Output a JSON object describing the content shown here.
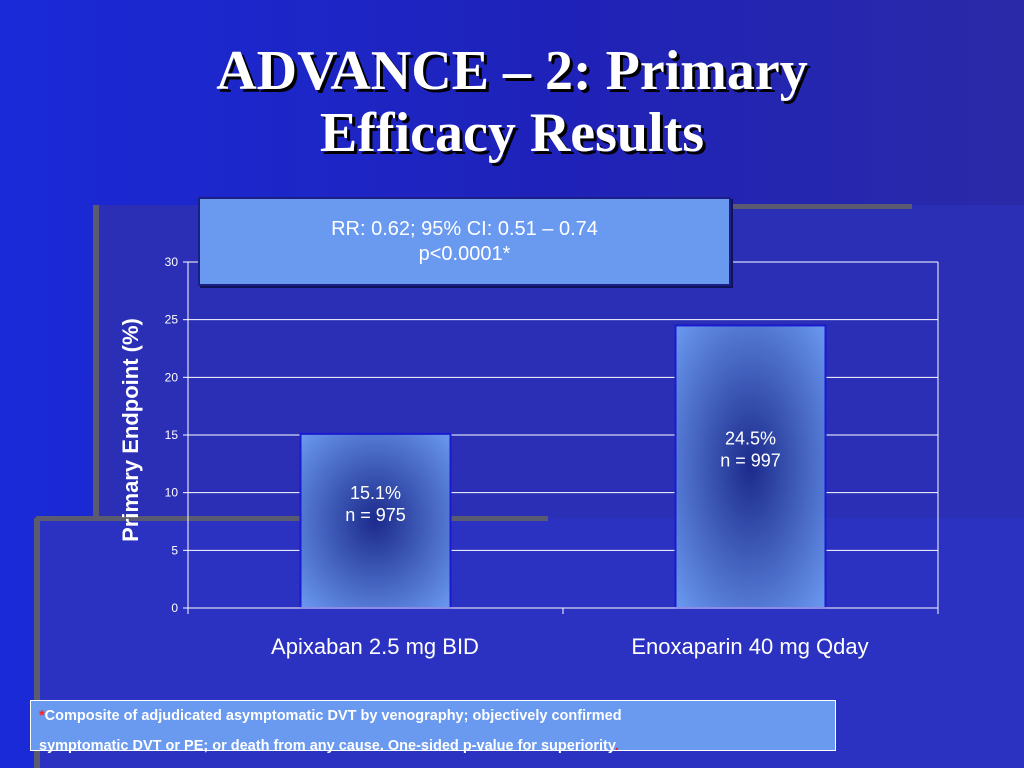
{
  "title_line1": "ADVANCE – 2: Primary",
  "title_line2": "Efficacy Results",
  "stat_box": {
    "line1": "RR: 0.62; 95% CI: 0.51 – 0.74",
    "line2": "p<0.0001*"
  },
  "footnote": {
    "star": "*",
    "line1": "Composite of adjudicated asymptomatic DVT by venography; objectively confirmed",
    "line2": "symptomatic DVT or PE; or death from any cause. One-sided p-value for superiority",
    "trail": "."
  },
  "chart_data": {
    "type": "bar",
    "categories": [
      "Apixaban 2.5 mg BID",
      "Enoxaparin 40 mg Qday"
    ],
    "values": [
      15.1,
      24.5
    ],
    "bar_labels": [
      [
        "15.1%",
        "n = 975"
      ],
      [
        "24.5%",
        "n = 997"
      ]
    ],
    "ylabel": "Primary Endpoint (%)",
    "ylim": [
      0,
      30
    ],
    "yticks": [
      0,
      5,
      10,
      15,
      20,
      25,
      30
    ],
    "grid": true,
    "colors": {
      "bar_edge": "#6a99f0",
      "bar_center": "#1c2a8c",
      "bar_border": "#1a1ad0",
      "grid": "#ffffff"
    }
  }
}
